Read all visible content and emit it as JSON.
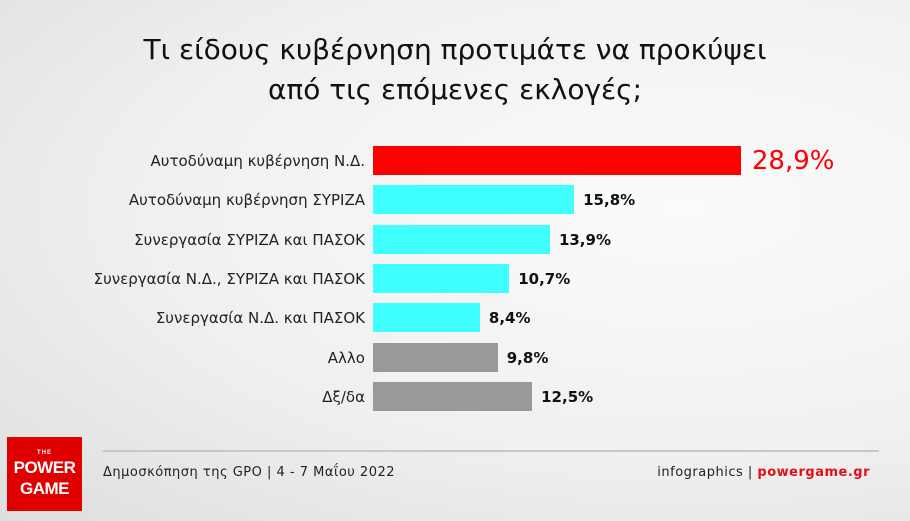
{
  "chart_data": {
    "type": "bar",
    "orientation": "horizontal",
    "title_lines": [
      "Τι είδους κυβέρνηση προτιμάτε να προκύψει",
      "από τις επόμενες εκλογές;"
    ],
    "categories": [
      "Αυτοδύναμη κυβέρνηση Ν.Δ.",
      "Αυτοδύναμη κυβέρνηση ΣΥΡΙΖΑ",
      "Συνεργασία ΣΥΡΙΖΑ και ΠΑΣΟΚ",
      "Συνεργασία Ν.Δ., ΣΥΡΙΖΑ και ΠΑΣΟΚ",
      "Συνεργασία Ν.Δ. και ΠΑΣΟΚ",
      "Αλλο",
      "Δξ/δα"
    ],
    "values": [
      28.9,
      15.8,
      13.9,
      10.7,
      8.4,
      9.8,
      12.5
    ],
    "value_labels": [
      "28,9%",
      "15,8%",
      "13,9%",
      "10,7%",
      "8,4%",
      "9,8%",
      "12,5%"
    ],
    "colors": [
      "#ff0000",
      "#40ffff",
      "#40ffff",
      "#40ffff",
      "#40ffff",
      "#999999",
      "#999999"
    ],
    "highlight_color": "#ff0000",
    "grid": false,
    "axes_visible": false
  },
  "footer": {
    "source": "Δημοσκόπηση της GPO | 4 - 7 Μαΐου 2022",
    "credit_prefix": "infographics | ",
    "credit_site": "powergame.gr"
  },
  "logo": {
    "the": "THE",
    "line1": "POWER",
    "line2": "GAME"
  }
}
